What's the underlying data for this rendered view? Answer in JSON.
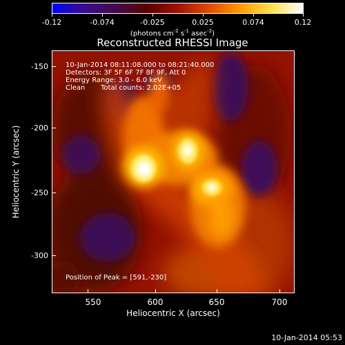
{
  "colorbar": {
    "tick_labels": [
      "-0.12",
      "-0.074",
      "-0.025",
      "0.025",
      "0.074",
      "0.12"
    ],
    "units_prefix": "(photons cm",
    "units_exp1": "-2",
    "units_mid": " s",
    "units_exp2": "-1",
    "units_mid2": " asec",
    "units_exp3": "-2",
    "units_suffix": ")",
    "palette": [
      "#0000ff",
      "#3a0c8c",
      "#45084f",
      "#5a0000",
      "#a01200",
      "#e04a00",
      "#ff9a00",
      "#ffe050",
      "#ffffff"
    ]
  },
  "title": "Reconstructed RHESSI Image",
  "info": {
    "time_range": "10-Jan-2014 08:11:08.000 to 08:21:40.000",
    "detectors": "Detectors: 3F 5F 6F 7F 8F 9F, Att 0",
    "energy_range": "Energy Range: 3.0 - 6.0 keV",
    "clean_label": "Clean",
    "total_counts": "Total counts: 2.02E+05"
  },
  "peak": "Position of Peak = [591,-230]",
  "axes": {
    "x_label": "Heliocentric X (arcsec)",
    "y_label": "Heliocentric Y (arcsec)",
    "x_ticks": [
      "550",
      "600",
      "650",
      "700"
    ],
    "y_ticks": [
      "-150",
      "-200",
      "-250",
      "-300"
    ]
  },
  "footer": "10-Jan-2014 05:53",
  "sources": [
    {
      "x": 591,
      "y": -230,
      "level": 0.12
    },
    {
      "x": 625,
      "y": -218,
      "level": 0.105
    },
    {
      "x": 645,
      "y": -245,
      "level": 0.1
    }
  ]
}
